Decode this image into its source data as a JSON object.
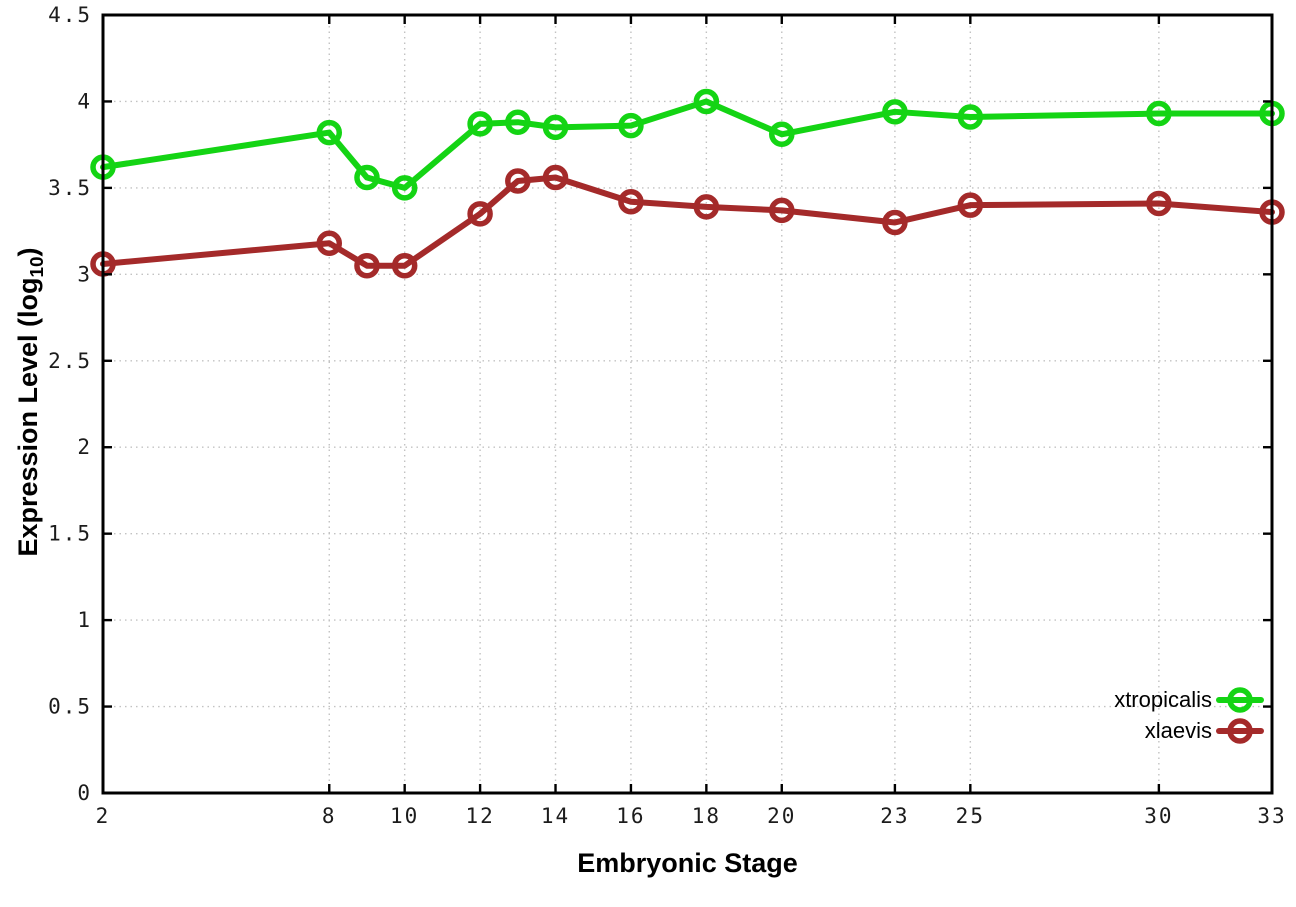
{
  "chart_data": {
    "type": "line",
    "title": "",
    "xlabel": "Embryonic Stage",
    "ylabel": "Expression Level (log10)",
    "ylabel_parts": {
      "prefix": "Expression Level (log",
      "sub": "10",
      "suffix": ")"
    },
    "x": [
      2,
      8,
      9,
      10,
      12,
      13,
      14,
      16,
      18,
      20,
      23,
      25,
      30,
      33
    ],
    "series": [
      {
        "name": "xtropicalis",
        "color": "#14d414",
        "values": [
          3.62,
          3.82,
          3.56,
          3.5,
          3.87,
          3.88,
          3.85,
          3.86,
          4.0,
          3.81,
          3.94,
          3.91,
          3.93,
          3.93
        ]
      },
      {
        "name": "xlaevis",
        "color": "#a42a2a",
        "values": [
          3.06,
          3.18,
          3.05,
          3.05,
          3.35,
          3.54,
          3.56,
          3.42,
          3.39,
          3.37,
          3.3,
          3.4,
          3.41,
          3.36
        ]
      }
    ],
    "x_ticks": {
      "values": [
        2,
        8,
        10,
        12,
        14,
        16,
        18,
        20,
        23,
        25,
        30,
        33
      ],
      "labels": [
        "2",
        "8",
        "10",
        "12",
        "14",
        "16",
        "18",
        "20",
        "23",
        "25",
        "30",
        "33"
      ]
    },
    "y_ticks": {
      "values": [
        0,
        0.5,
        1,
        1.5,
        2,
        2.5,
        3,
        3.5,
        4,
        4.5
      ],
      "labels": [
        "0",
        "0.5",
        "1",
        "1.5",
        "2",
        "2.5",
        "3",
        "3.5",
        "4",
        "4.5"
      ]
    },
    "xlim": [
      2,
      33
    ],
    "ylim": [
      0,
      4.5
    ],
    "grid": true,
    "legend_position": "bottom-right",
    "styles": {
      "grid_color": "#c2c2c2",
      "border_color": "#000000",
      "tick_label_color": "#1c1c1c",
      "marker": "open-circle",
      "line_width": 6,
      "marker_radius": 10,
      "marker_stroke": 5.5
    }
  }
}
